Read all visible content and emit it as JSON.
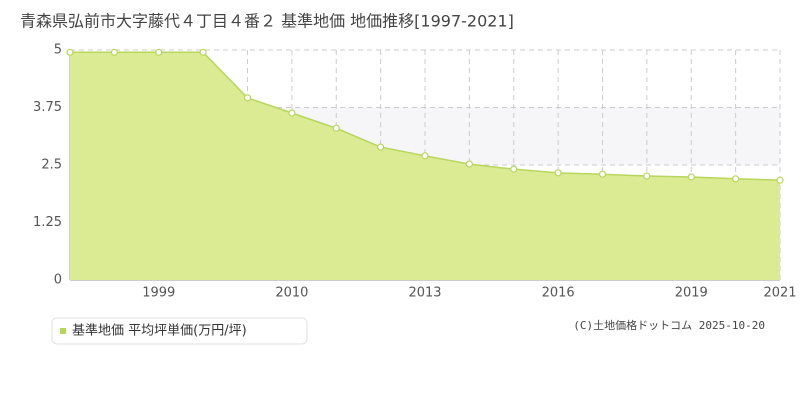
{
  "chart_data": {
    "type": "area",
    "title": "青森県弘前市大字藤代４丁目４番２ 基準地価 地価推移[1997-2021]",
    "categories": [
      null,
      null,
      "1999",
      null,
      null,
      "2010",
      null,
      null,
      "2013",
      null,
      null,
      "2016",
      null,
      null,
      "2019",
      null,
      "2021"
    ],
    "series": [
      {
        "name": "基準地価 平均坪単価(万円/坪)",
        "color": "#b8d65c",
        "values": [
          4.95,
          4.95,
          4.95,
          4.95,
          3.96,
          3.63,
          3.3,
          2.89,
          2.7,
          2.52,
          2.41,
          2.33,
          2.3,
          2.26,
          2.24,
          2.2,
          2.17
        ]
      }
    ],
    "ylim": [
      0,
      5
    ],
    "yticks": [
      0,
      1.25,
      2.5,
      3.75,
      5
    ],
    "grid": true,
    "credit": "(C)土地価格ドットコム 2025-10-20"
  }
}
